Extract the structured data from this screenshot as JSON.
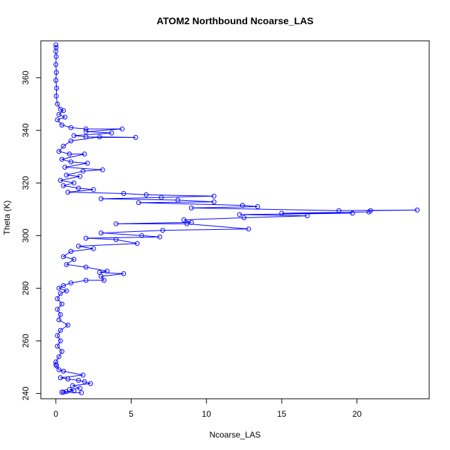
{
  "chart_data": {
    "type": "line",
    "title": "ATOM2 Northbound Ncoarse_LAS",
    "xlabel": "Ncoarse_LAS",
    "ylabel": "Theta (K)",
    "xlim": [
      -1.0,
      24.8
    ],
    "ylim": [
      238.0,
      374.0
    ],
    "x_ticks": [
      0,
      5,
      10,
      15,
      20
    ],
    "y_ticks": [
      240,
      260,
      280,
      300,
      320,
      340,
      360
    ],
    "grid": false,
    "legend": "none",
    "series_color": "#0000ff",
    "marker": "open-circle",
    "series": [
      {
        "points": [
          [
            0.0,
            372.5
          ],
          [
            0.01,
            371.5
          ],
          [
            0.0,
            370.0
          ],
          [
            0.02,
            368.0
          ],
          [
            0.0,
            365.0
          ],
          [
            0.03,
            362.0
          ],
          [
            0.0,
            359.0
          ],
          [
            0.05,
            356.0
          ],
          [
            0.02,
            353.0
          ],
          [
            0.1,
            350.0
          ],
          [
            0.3,
            348.0
          ],
          [
            0.5,
            347.5
          ],
          [
            0.2,
            346.0
          ],
          [
            0.6,
            345.0
          ],
          [
            0.1,
            344.0
          ],
          [
            0.4,
            342.0
          ],
          [
            1.0,
            341.0
          ],
          [
            2.0,
            340.5
          ],
          [
            4.4,
            340.5
          ],
          [
            2.0,
            339.5
          ],
          [
            3.7,
            339.0
          ],
          [
            1.2,
            338.0
          ],
          [
            2.0,
            337.5
          ],
          [
            5.3,
            337.3
          ],
          [
            2.9,
            337.5
          ],
          [
            1.0,
            336.0
          ],
          [
            0.5,
            334.0
          ],
          [
            0.2,
            332.0
          ],
          [
            0.9,
            331.0
          ],
          [
            1.9,
            331.0
          ],
          [
            0.4,
            329.0
          ],
          [
            1.0,
            328.0
          ],
          [
            2.1,
            327.5
          ],
          [
            0.6,
            326.0
          ],
          [
            3.1,
            325.0
          ],
          [
            1.8,
            324.5
          ],
          [
            0.7,
            323.0
          ],
          [
            1.6,
            322.5
          ],
          [
            0.3,
            321.0
          ],
          [
            1.2,
            320.0
          ],
          [
            0.5,
            319.0
          ],
          [
            1.5,
            318.0
          ],
          [
            2.5,
            317.5
          ],
          [
            0.8,
            316.5
          ],
          [
            4.5,
            316.0
          ],
          [
            6.0,
            315.5
          ],
          [
            10.5,
            315.0
          ],
          [
            7.0,
            314.5
          ],
          [
            3.0,
            314.0
          ],
          [
            8.1,
            313.5
          ],
          [
            10.5,
            312.8
          ],
          [
            5.5,
            312.5
          ],
          [
            12.4,
            311.5
          ],
          [
            13.4,
            311.0
          ],
          [
            9.0,
            310.5
          ],
          [
            18.8,
            309.5
          ],
          [
            24.0,
            309.7
          ],
          [
            20.9,
            309.5
          ],
          [
            20.8,
            309.0
          ],
          [
            15.0,
            308.5
          ],
          [
            19.7,
            308.5
          ],
          [
            12.2,
            308.0
          ],
          [
            16.7,
            307.5
          ],
          [
            12.5,
            306.8
          ],
          [
            8.5,
            306.0
          ],
          [
            9.0,
            305.0
          ],
          [
            4.0,
            304.5
          ],
          [
            8.7,
            304.5
          ],
          [
            12.8,
            302.5
          ],
          [
            7.1,
            302.0
          ],
          [
            3.0,
            301.0
          ],
          [
            5.7,
            300.0
          ],
          [
            6.9,
            299.5
          ],
          [
            2.0,
            299.0
          ],
          [
            4.0,
            298.5
          ],
          [
            5.4,
            297.0
          ],
          [
            1.5,
            296.0
          ],
          [
            2.5,
            295.0
          ],
          [
            1.0,
            294.0
          ],
          [
            0.5,
            292.0
          ],
          [
            1.2,
            291.0
          ],
          [
            0.7,
            289.0
          ],
          [
            2.0,
            288.0
          ],
          [
            3.4,
            286.5
          ],
          [
            2.9,
            286.0
          ],
          [
            4.5,
            285.5
          ],
          [
            3.0,
            284.5
          ],
          [
            3.2,
            283.0
          ],
          [
            2.0,
            283.0
          ],
          [
            1.0,
            282.0
          ],
          [
            0.5,
            281.0
          ],
          [
            0.2,
            280.0
          ],
          [
            0.7,
            279.0
          ],
          [
            0.3,
            278.0
          ],
          [
            0.1,
            276.0
          ],
          [
            0.4,
            274.0
          ],
          [
            0.1,
            272.0
          ],
          [
            0.3,
            270.0
          ],
          [
            0.2,
            268.0
          ],
          [
            0.8,
            266.0
          ],
          [
            0.3,
            264.0
          ],
          [
            0.1,
            262.0
          ],
          [
            0.3,
            260.0
          ],
          [
            0.1,
            258.0
          ],
          [
            0.4,
            256.0
          ],
          [
            0.2,
            254.0
          ],
          [
            0.0,
            252.0
          ],
          [
            0.0,
            251.0
          ],
          [
            0.05,
            250.5
          ],
          [
            0.2,
            249.0
          ],
          [
            0.5,
            248.5
          ],
          [
            1.8,
            247.0
          ],
          [
            0.3,
            246.0
          ],
          [
            0.8,
            245.5
          ],
          [
            1.5,
            245.0
          ],
          [
            1.9,
            244.5
          ],
          [
            2.3,
            243.8
          ],
          [
            1.1,
            243.0
          ],
          [
            1.6,
            242.0
          ],
          [
            0.9,
            241.5
          ],
          [
            1.2,
            241.0
          ],
          [
            0.7,
            240.7
          ],
          [
            0.5,
            240.5
          ],
          [
            1.7,
            240.3
          ],
          [
            0.4,
            240.5
          ]
        ]
      }
    ]
  }
}
